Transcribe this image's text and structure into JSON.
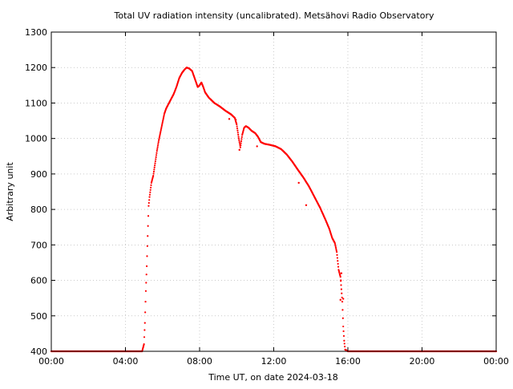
{
  "chart_data": {
    "type": "scatter",
    "title": "Total UV radiation intensity (uncalibrated). Metsähovi Radio Observatory",
    "xlabel": "Time UT, on date 2024-03-18",
    "ylabel": "Arbitrary unit",
    "x_unit": "hours UT",
    "xlim": [
      0,
      24
    ],
    "ylim": [
      400,
      1300
    ],
    "x_ticks": [
      {
        "value": 0,
        "label": "00:00"
      },
      {
        "value": 4,
        "label": "04:00"
      },
      {
        "value": 8,
        "label": "08:00"
      },
      {
        "value": 12,
        "label": "12:00"
      },
      {
        "value": 16,
        "label": "16:00"
      },
      {
        "value": 20,
        "label": "20:00"
      },
      {
        "value": 24,
        "label": "00:00"
      }
    ],
    "y_ticks": [
      400,
      500,
      600,
      700,
      800,
      900,
      1000,
      1100,
      1200,
      1300
    ],
    "grid": true,
    "grid_style": "dotted",
    "color": "#ff0000",
    "series": [
      {
        "points": [
          [
            0.0,
            400
          ],
          [
            1.0,
            400
          ],
          [
            2.0,
            400
          ],
          [
            3.0,
            400
          ],
          [
            4.0,
            400
          ],
          [
            4.9,
            400
          ],
          [
            5.0,
            420
          ],
          [
            5.05,
            480
          ],
          [
            5.1,
            570
          ],
          [
            5.15,
            640
          ],
          [
            5.2,
            725
          ],
          [
            5.25,
            810
          ],
          [
            5.3,
            835
          ],
          [
            5.35,
            855
          ],
          [
            5.4,
            875
          ],
          [
            5.5,
            895
          ],
          [
            5.6,
            930
          ],
          [
            5.7,
            965
          ],
          [
            5.8,
            995
          ],
          [
            5.9,
            1020
          ],
          [
            6.0,
            1045
          ],
          [
            6.1,
            1070
          ],
          [
            6.2,
            1085
          ],
          [
            6.3,
            1095
          ],
          [
            6.45,
            1110
          ],
          [
            6.6,
            1125
          ],
          [
            6.75,
            1145
          ],
          [
            6.9,
            1170
          ],
          [
            7.05,
            1185
          ],
          [
            7.2,
            1195
          ],
          [
            7.3,
            1200
          ],
          [
            7.45,
            1197
          ],
          [
            7.6,
            1190
          ],
          [
            7.7,
            1175
          ],
          [
            7.8,
            1160
          ],
          [
            7.9,
            1145
          ],
          [
            8.0,
            1150
          ],
          [
            8.1,
            1158
          ],
          [
            8.2,
            1145
          ],
          [
            8.3,
            1130
          ],
          [
            8.5,
            1115
          ],
          [
            8.8,
            1100
          ],
          [
            9.1,
            1090
          ],
          [
            9.4,
            1078
          ],
          [
            9.7,
            1068
          ],
          [
            9.9,
            1058
          ],
          [
            10.0,
            1040
          ],
          [
            10.1,
            1005
          ],
          [
            10.2,
            975
          ],
          [
            10.3,
            1010
          ],
          [
            10.4,
            1030
          ],
          [
            10.5,
            1035
          ],
          [
            10.65,
            1030
          ],
          [
            10.8,
            1022
          ],
          [
            11.0,
            1015
          ],
          [
            11.15,
            1005
          ],
          [
            11.3,
            990
          ],
          [
            11.5,
            985
          ],
          [
            11.8,
            982
          ],
          [
            12.1,
            978
          ],
          [
            12.4,
            970
          ],
          [
            12.7,
            955
          ],
          [
            13.0,
            935
          ],
          [
            13.3,
            912
          ],
          [
            13.6,
            890
          ],
          [
            13.9,
            865
          ],
          [
            14.2,
            835
          ],
          [
            14.5,
            805
          ],
          [
            14.8,
            770
          ],
          [
            15.0,
            745
          ],
          [
            15.15,
            720
          ],
          [
            15.3,
            705
          ],
          [
            15.4,
            680
          ],
          [
            15.5,
            630
          ],
          [
            15.6,
            610
          ],
          [
            15.7,
            540
          ],
          [
            15.75,
            470
          ],
          [
            15.8,
            430
          ],
          [
            15.85,
            405
          ],
          [
            16.0,
            400
          ],
          [
            17.0,
            400
          ],
          [
            18.0,
            400
          ],
          [
            19.0,
            400
          ],
          [
            20.0,
            400
          ],
          [
            21.0,
            400
          ],
          [
            22.0,
            400
          ],
          [
            23.0,
            400
          ],
          [
            24.0,
            400
          ]
        ]
      }
    ],
    "outliers": [
      [
        9.6,
        1055
      ],
      [
        9.95,
        1053
      ],
      [
        10.15,
        968
      ],
      [
        11.1,
        978
      ],
      [
        13.35,
        875
      ],
      [
        13.75,
        812
      ],
      [
        15.6,
        545
      ],
      [
        15.75,
        548
      ],
      [
        15.65,
        620
      ],
      [
        15.62,
        600
      ]
    ]
  }
}
